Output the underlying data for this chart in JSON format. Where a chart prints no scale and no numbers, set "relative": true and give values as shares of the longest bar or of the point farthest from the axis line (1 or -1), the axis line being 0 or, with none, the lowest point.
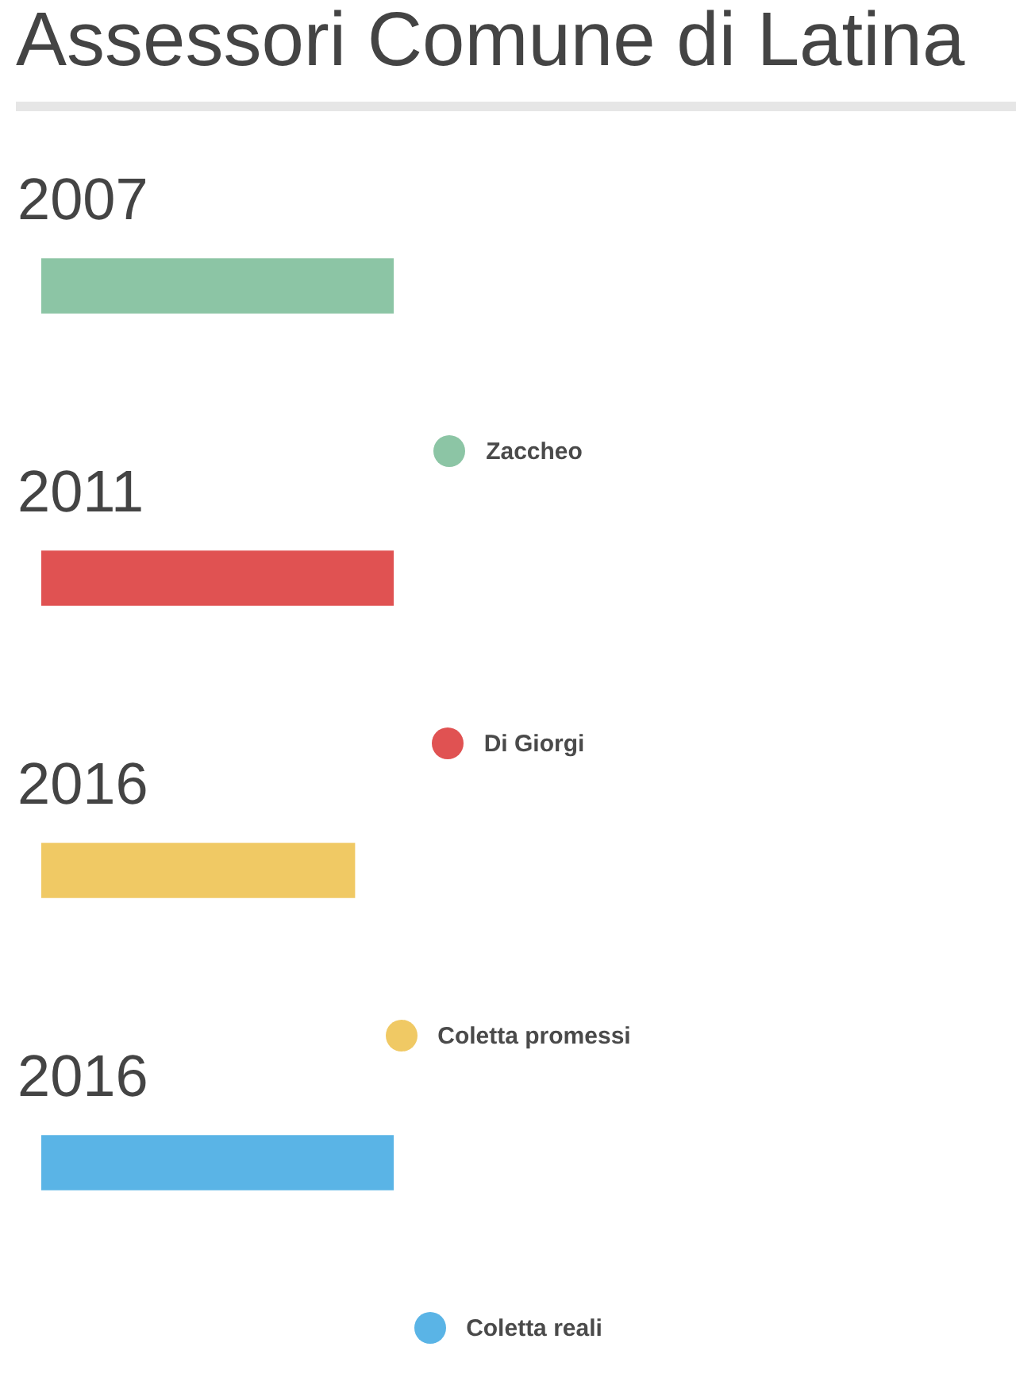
{
  "chart_data": {
    "type": "bar",
    "title": "Assessori Comune di Latina",
    "orientation": "horizontal",
    "relative": true,
    "categories": [
      "2007",
      "2011",
      "2016",
      "2016"
    ],
    "series": [
      {
        "name": "Zaccheo",
        "color": "#8cc5a5",
        "values": [
          1,
          null,
          null,
          null
        ]
      },
      {
        "name": "Di Giorgi",
        "color": "#e05252",
        "values": [
          null,
          1,
          null,
          null
        ]
      },
      {
        "name": "Coletta promessi",
        "color": "#f0c964",
        "values": [
          null,
          null,
          0.889,
          null
        ]
      },
      {
        "name": "Coletta reali",
        "color": "#5ab4e6",
        "values": [
          null,
          null,
          null,
          1
        ]
      }
    ],
    "legend": "bottom"
  }
}
